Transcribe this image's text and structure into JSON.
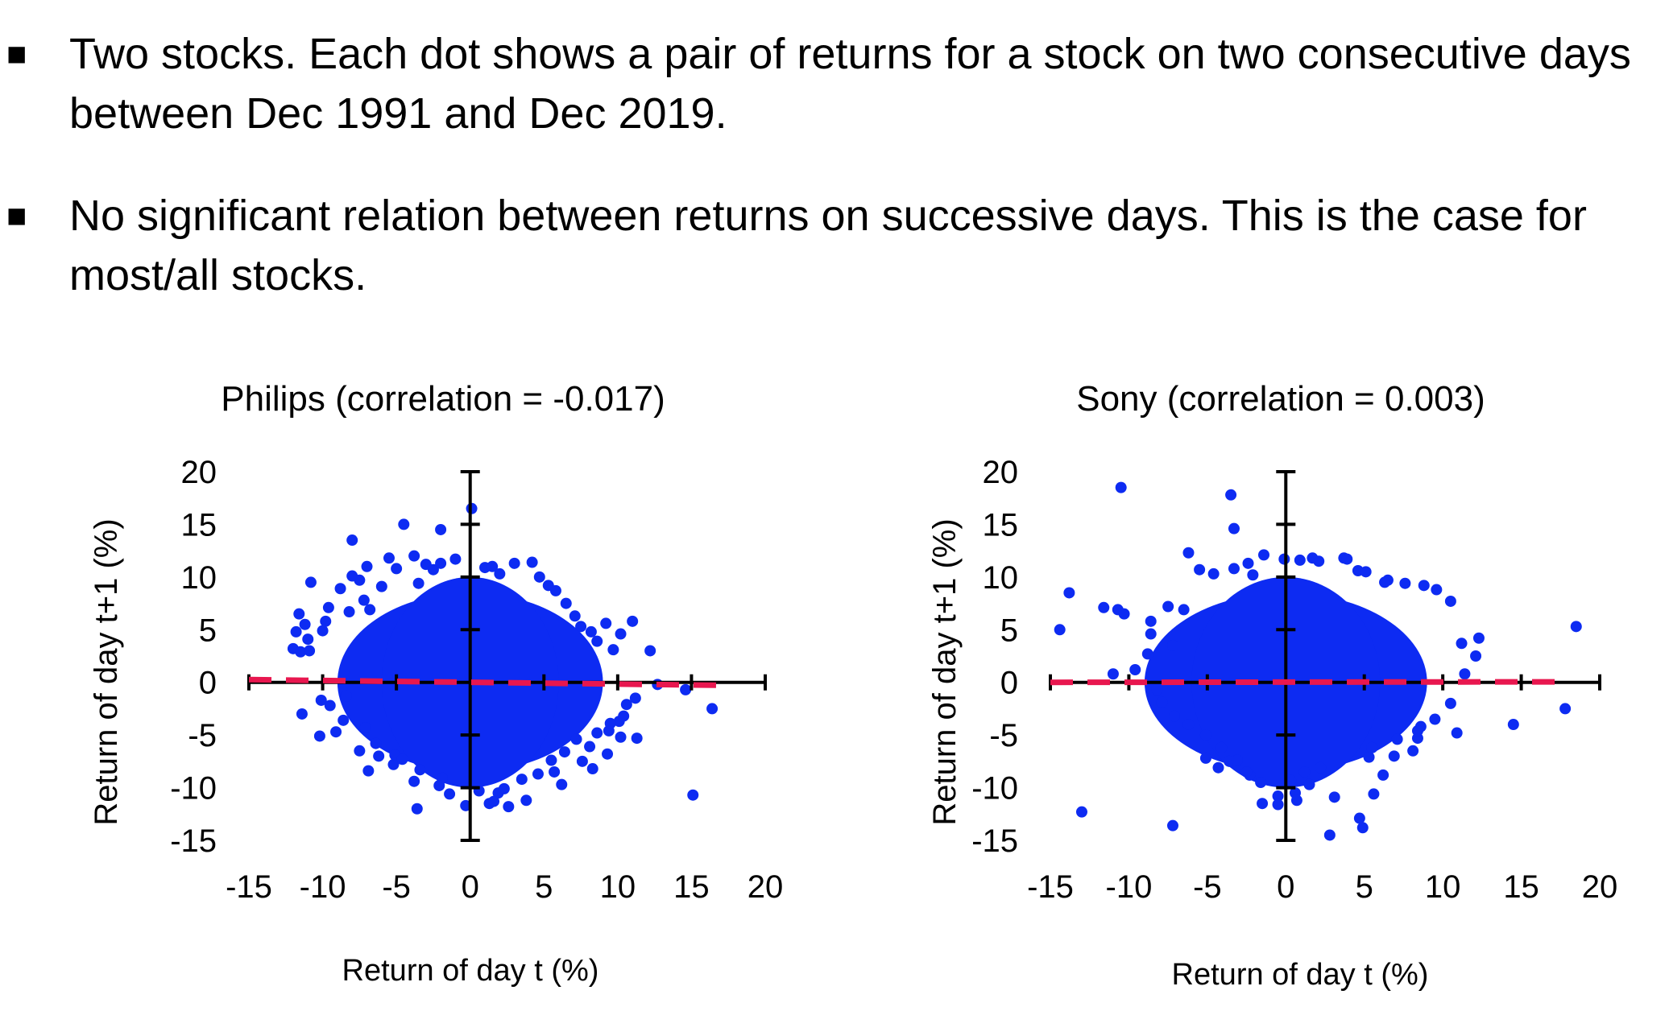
{
  "bullets": [
    {
      "marker": "■",
      "text": "Two stocks. Each dot shows a pair of returns for a stock on two consecutive days between Dec 1991 and Dec 2019."
    },
    {
      "marker": "■",
      "text": "No significant relation between returns on successive days. This is the case for most/all stocks."
    }
  ],
  "colors": {
    "points": "#0d2bf2",
    "trend": "#e8174f",
    "axes": "#000000"
  },
  "chart_data": [
    {
      "type": "scatter",
      "title": "Philips (correlation = -0.017)",
      "xlabel": "Return of day t (%)",
      "ylabel": "Return of day t+1 (%)",
      "xlim": [
        -15,
        20
      ],
      "ylim": [
        -15,
        20
      ],
      "xticks": [
        "-15",
        "-10",
        "-5",
        "0",
        "5",
        "10",
        "15",
        "20"
      ],
      "yticks": [
        "20",
        "15",
        "10",
        "5",
        "0",
        "-5",
        "-10",
        "-15"
      ],
      "trendline": {
        "x": [
          -15,
          17
        ],
        "y": [
          0.26,
          -0.28
        ]
      },
      "points": {
        "x": [
          0.1,
          -4.5,
          -2,
          -8,
          -10.8,
          -11.6,
          -11.2,
          -11.8,
          -12,
          -11.5,
          -9.6,
          -9.8,
          -10,
          -11,
          -10.9,
          -8.8,
          -8.2,
          -7.5,
          -8,
          -7,
          -6.8,
          -7.2,
          -6,
          -5.5,
          -5,
          -3.8,
          -3,
          -3.5,
          -2.5,
          -2,
          -1,
          1,
          1.5,
          2,
          3,
          4.2,
          4.7,
          5.3,
          5.8,
          6.5,
          7.1,
          7.5,
          8.2,
          9.2,
          8.6,
          9.7,
          10.2,
          11,
          12.2,
          14.6,
          16.4,
          15.1,
          11.3,
          10.2,
          9.3,
          8.6,
          7.6,
          8.3,
          5.7,
          6.2,
          3.8,
          2.6,
          1.3,
          -0.3,
          1.9,
          -3.6,
          -3.8,
          -1.9,
          -5.2,
          -6.2,
          -6.9,
          -7.5,
          -9.1,
          -10.2,
          -11.4,
          -8.6,
          -9.5,
          -10.1,
          -8.4,
          -7.1,
          -6.4,
          -5.1,
          -4.6,
          -3.4,
          -2.1,
          -1.4,
          0.6,
          1.6,
          2.3,
          3.5,
          4.6,
          5.5,
          6.4,
          7.2,
          8.1,
          9.4,
          10.1,
          10.6,
          11.2,
          10.4,
          9.5,
          12.7
        ],
        "y": [
          16.5,
          15,
          14.5,
          13.5,
          9.5,
          6.5,
          5.5,
          4.8,
          3.2,
          2.9,
          7.1,
          5.8,
          4.9,
          4.1,
          3,
          8.9,
          6.7,
          9.7,
          10.1,
          11,
          6.9,
          7.8,
          9.1,
          11.8,
          10.8,
          12,
          11.2,
          9.4,
          10.7,
          11.3,
          11.7,
          10.9,
          11,
          10.3,
          11.3,
          11.4,
          10,
          9.2,
          8.7,
          7.5,
          6.3,
          5.3,
          4.8,
          5.6,
          3.9,
          3.1,
          4.6,
          5.8,
          3,
          -0.7,
          -2.5,
          -10.7,
          -5.3,
          -5.2,
          -6.8,
          -4.8,
          -7.5,
          -8.2,
          -8.5,
          -9.7,
          -11.2,
          -11.8,
          -11.5,
          -11.7,
          -10.5,
          -12,
          -9.4,
          -9.1,
          -7.8,
          -7,
          -8.4,
          -6.5,
          -4.7,
          -5.1,
          -3,
          -3.6,
          -2.2,
          -1.7,
          -1.3,
          -4.3,
          -5.8,
          -6.9,
          -7.3,
          -8.3,
          -9.8,
          -10.6,
          -10.3,
          -11.3,
          -10.1,
          -9.2,
          -8.7,
          -7.4,
          -6.6,
          -5.4,
          -6.1,
          -4.6,
          -3.7,
          -2.1,
          -1.5,
          -3.2,
          -3.9,
          -0.2
        ]
      }
    },
    {
      "type": "scatter",
      "title": "Sony (correlation = 0.003)",
      "xlabel": "Return of day t (%)",
      "ylabel": "Return of day t+1 (%)",
      "xlim": [
        -15,
        20
      ],
      "ylim": [
        -15,
        20
      ],
      "xticks": [
        "-15",
        "-10",
        "-5",
        "0",
        "5",
        "10",
        "15",
        "20"
      ],
      "yticks": [
        "20",
        "15",
        "10",
        "5",
        "0",
        "-5",
        "-10",
        "-15"
      ],
      "trendline": {
        "x": [
          -15,
          18
        ],
        "y": [
          0,
          0.05
        ]
      },
      "points": {
        "x": [
          -10.5,
          -3.5,
          -3.3,
          -6.2,
          -13.8,
          -14.4,
          -11.6,
          -10.7,
          -10.3,
          -8.6,
          -8.6,
          -7.5,
          -7.2,
          -8.8,
          -9.6,
          -11,
          -8.2,
          -13,
          -7.2,
          -5.1,
          -4.3,
          -3.6,
          -2.3,
          -1.5,
          -0.5,
          0.3,
          0.6,
          1.2,
          2.2,
          3.1,
          4.9,
          5.6,
          6.2,
          6.9,
          8.1,
          8.4,
          8.6,
          9.5,
          10.5,
          11.4,
          12.1,
          12.3,
          11.2,
          18.5,
          17.8,
          14.5,
          10.9,
          8.4,
          7.1,
          5.3,
          5.5,
          4.7,
          2.8,
          1.5,
          0.7,
          -0.5,
          -1.6,
          -2.5,
          -3.1,
          -4.1,
          -5.1,
          -6.2,
          -7.1,
          -7.9,
          -2.4,
          -1.4,
          -0.1,
          2.1,
          3.7,
          4.6,
          6.5,
          7.6,
          8.8,
          9.6,
          10.5,
          -4.6,
          -5.5,
          -6.5,
          -3.3,
          -2.1,
          0.9,
          1.7,
          3.9,
          5.1,
          6.3
        ],
        "y": [
          18.5,
          17.8,
          14.6,
          12.3,
          8.5,
          5,
          7.1,
          6.9,
          6.5,
          5.8,
          4.6,
          7.2,
          3.5,
          2.7,
          1.2,
          0.8,
          -0.7,
          -12.3,
          -13.6,
          -7.2,
          -8.1,
          -7.5,
          -8.8,
          -11.5,
          -10.8,
          -9.3,
          -10.5,
          -8.5,
          -8.1,
          -10.9,
          -13.8,
          -10.6,
          -8.8,
          -7,
          -6.5,
          -5.3,
          -4.2,
          -3.5,
          -2,
          0.8,
          2.5,
          4.2,
          3.7,
          5.3,
          -2.5,
          -4,
          -4.8,
          -4.6,
          -5.4,
          -7.1,
          -6.2,
          -12.9,
          -14.5,
          -9.7,
          -11.2,
          -11.6,
          -9.5,
          -8.5,
          -7.4,
          -6.2,
          -5,
          -4,
          -3.2,
          -1.9,
          11.3,
          12.1,
          11.7,
          11.5,
          11.8,
          10.6,
          9.7,
          9.4,
          9.2,
          8.8,
          7.7,
          10.3,
          10.7,
          6.9,
          10.8,
          10.2,
          11.6,
          11.8,
          11.7,
          10.5,
          9.5
        ]
      }
    }
  ]
}
